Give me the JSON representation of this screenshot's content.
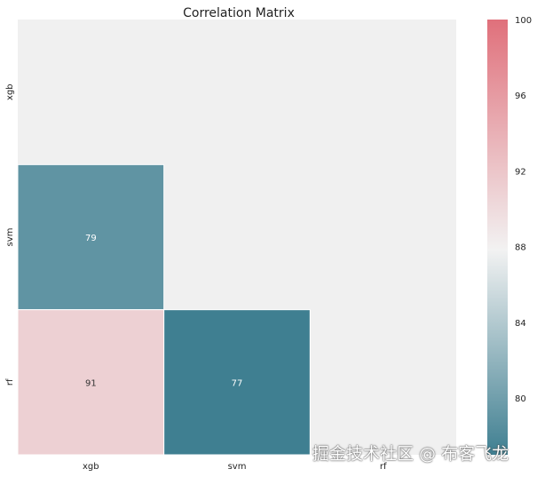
{
  "chart_data": {
    "type": "heatmap",
    "title": "Correlation Matrix",
    "row_labels": [
      "xgb",
      "svm",
      "rf"
    ],
    "col_labels": [
      "xgb",
      "svm",
      "rf"
    ],
    "values": [
      [
        null,
        null,
        null
      ],
      [
        79,
        null,
        null
      ],
      [
        91,
        77,
        null
      ]
    ],
    "mask": "upper-triangle-and-diagonal",
    "colorbar": {
      "min": 77,
      "max": 100,
      "ticks": [
        "80",
        "84",
        "88",
        "92",
        "96",
        "100"
      ],
      "tick_values": [
        80,
        84,
        88,
        92,
        96,
        100
      ]
    },
    "colors": {
      "low": "#3f7f91",
      "mid": "#f2f2f2",
      "high": "#e0707b",
      "background": "#f0f0f0"
    }
  },
  "watermark": "掘金技术社区 @ 布客飞龙"
}
